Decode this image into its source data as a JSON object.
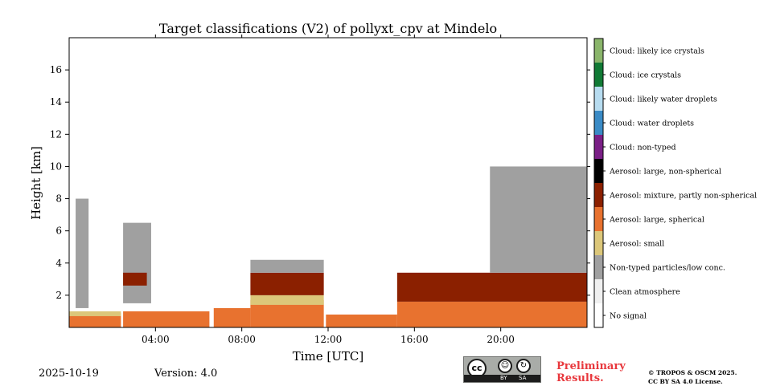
{
  "chart_data": {
    "type": "heatmap",
    "title": "Target classifications (V2) of pollyxt_cpv at Mindelo",
    "xlabel": "Time [UTC]",
    "ylabel": "Height [km]",
    "xlim_hours": [
      0,
      24
    ],
    "ylim_km": [
      0,
      18
    ],
    "x_ticks": [
      {
        "hour": 4,
        "label": "04:00"
      },
      {
        "hour": 8,
        "label": "08:00"
      },
      {
        "hour": 12,
        "label": "12:00"
      },
      {
        "hour": 16,
        "label": "16:00"
      },
      {
        "hour": 20,
        "label": "20:00"
      }
    ],
    "y_ticks": [
      {
        "km": 2,
        "label": "2"
      },
      {
        "km": 4,
        "label": "4"
      },
      {
        "km": 6,
        "label": "6"
      },
      {
        "km": 8,
        "label": "8"
      },
      {
        "km": 10,
        "label": "10"
      },
      {
        "km": 12,
        "label": "12"
      },
      {
        "km": 14,
        "label": "14"
      },
      {
        "km": 16,
        "label": "16"
      }
    ],
    "classes": [
      {
        "label": "No signal",
        "color": "#ffffff"
      },
      {
        "label": "Clean atmosphere",
        "color": "#f0f0f0"
      },
      {
        "label": "Non-typed particles/low conc.",
        "color": "#a0a0a0"
      },
      {
        "label": "Aerosol: small",
        "color": "#dcc77a"
      },
      {
        "label": "Aerosol: large, spherical",
        "color": "#e8722f"
      },
      {
        "label": "Aerosol: mixture, partly non-spherical",
        "color": "#8b2000"
      },
      {
        "label": "Aerosol: large, non-spherical",
        "color": "#000000"
      },
      {
        "label": "Cloud: non-typed",
        "color": "#7a1f86"
      },
      {
        "label": "Cloud: water droplets",
        "color": "#3a8bc6"
      },
      {
        "label": "Cloud: likely water droplets",
        "color": "#b7dcf0"
      },
      {
        "label": "Cloud: ice crystals",
        "color": "#117a35"
      },
      {
        "label": "Cloud: likely ice crystals",
        "color": "#8ab56b"
      }
    ],
    "regions": [
      {
        "class": "Aerosol: large, spherical",
        "t": [
          0.0,
          2.4
        ],
        "h": [
          0.0,
          0.9
        ]
      },
      {
        "class": "Aerosol: small",
        "t": [
          0.0,
          2.4
        ],
        "h": [
          0.7,
          1.0
        ]
      },
      {
        "class": "Non-typed particles/low conc.",
        "t": [
          0.3,
          0.9
        ],
        "h": [
          1.2,
          8.0
        ]
      },
      {
        "class": "Non-typed particles/low conc.",
        "t": [
          2.5,
          3.8
        ],
        "h": [
          1.5,
          6.5
        ]
      },
      {
        "class": "Aerosol: mixture, partly non-spherical",
        "t": [
          2.5,
          3.6
        ],
        "h": [
          2.6,
          3.4
        ]
      },
      {
        "class": "Aerosol: large, spherical",
        "t": [
          2.5,
          6.5
        ],
        "h": [
          0.0,
          1.0
        ]
      },
      {
        "class": "Aerosol: large, spherical",
        "t": [
          6.7,
          8.4
        ],
        "h": [
          0.0,
          1.2
        ]
      },
      {
        "class": "Aerosol: large, spherical",
        "t": [
          8.4,
          11.8
        ],
        "h": [
          0.0,
          1.7
        ]
      },
      {
        "class": "Aerosol: small",
        "t": [
          8.4,
          11.8
        ],
        "h": [
          1.4,
          2.0
        ]
      },
      {
        "class": "Aerosol: mixture, partly non-spherical",
        "t": [
          8.4,
          11.8
        ],
        "h": [
          2.0,
          3.4
        ]
      },
      {
        "class": "Non-typed particles/low conc.",
        "t": [
          8.4,
          11.8
        ],
        "h": [
          3.4,
          4.2
        ]
      },
      {
        "class": "Aerosol: large, spherical",
        "t": [
          11.9,
          15.2
        ],
        "h": [
          0.0,
          0.8
        ]
      },
      {
        "class": "Aerosol: large, spherical",
        "t": [
          15.2,
          24.0
        ],
        "h": [
          0.0,
          1.6
        ]
      },
      {
        "class": "Aerosol: mixture, partly non-spherical",
        "t": [
          15.2,
          24.0
        ],
        "h": [
          1.6,
          3.4
        ]
      },
      {
        "class": "Non-typed particles/low conc.",
        "t": [
          19.5,
          24.0
        ],
        "h": [
          3.4,
          10.0
        ]
      }
    ]
  },
  "footer": {
    "date": "2025-10-19",
    "version": "Version: 4.0",
    "license_badge": {
      "cc": "cc",
      "by": "BY",
      "sa": "SA"
    },
    "preliminary_line1": "Preliminary",
    "preliminary_line2": "Results.",
    "copyright_line1": "© TROPOS & OSCM 2025.",
    "copyright_line2": "CC BY SA 4.0 License."
  }
}
